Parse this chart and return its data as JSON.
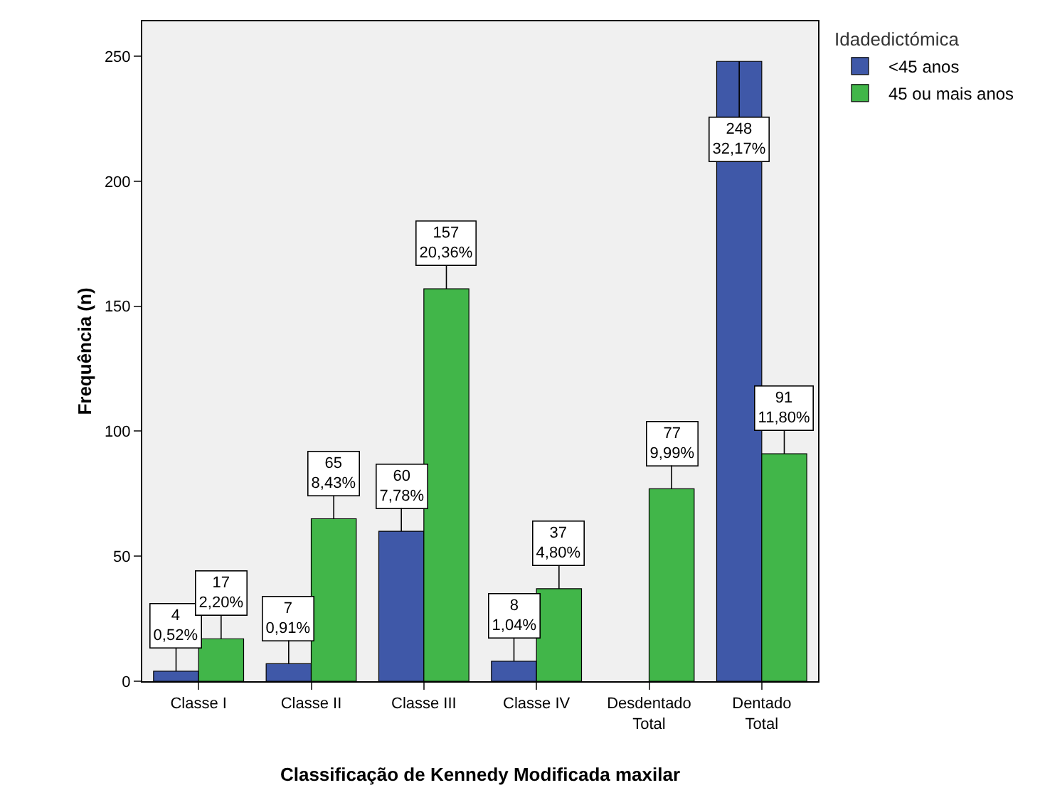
{
  "chart_data": {
    "type": "bar",
    "xlabel": "Classificação de Kennedy Modificada maxilar",
    "ylabel": "Frequência (n)",
    "legend_title": "Idadedictómica",
    "categories": [
      "Classe I",
      "Classe II",
      "Classe III",
      "Classe IV",
      "Desdentado Total",
      "Dentado Total"
    ],
    "series": [
      {
        "name": "<45 anos",
        "color": "#3f58a8",
        "values": [
          4,
          7,
          60,
          8,
          null,
          248
        ],
        "value_labels": [
          "4\n0,52%",
          "7\n0,91%",
          "60\n7,78%",
          "8\n1,04%",
          null,
          "248\n32,17%"
        ]
      },
      {
        "name": "45 ou mais anos",
        "color": "#41b649",
        "values": [
          17,
          65,
          157,
          37,
          77,
          91
        ],
        "value_labels": [
          "17\n2,20%",
          "65\n8,43%",
          "157\n20,36%",
          "37\n4,80%",
          "77\n9,99%",
          "91\n11,80%"
        ]
      }
    ],
    "ylim": [
      0,
      264
    ],
    "yticks": [
      0,
      50,
      100,
      150,
      200,
      250
    ],
    "grid": false,
    "legend": "top right"
  }
}
